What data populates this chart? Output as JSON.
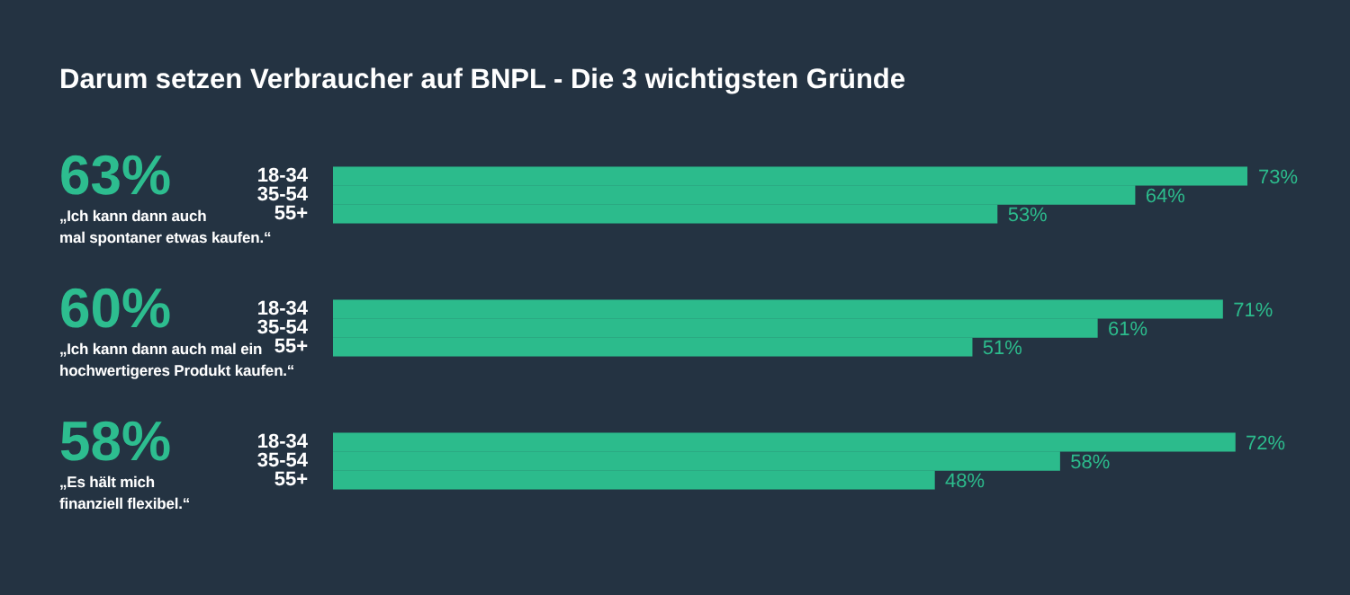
{
  "chart_data": [
    {
      "type": "bar",
      "orientation": "horizontal",
      "title": "Darum setzen Verbraucher auf BNPL - Die 3 wichtigsten Gründe",
      "categories": [
        "18-34",
        "35-54",
        "55+"
      ],
      "values": [
        73,
        64,
        53
      ],
      "value_labels": [
        "73%",
        "64%",
        "53%"
      ],
      "color": "#2cbb8c",
      "annotations": [
        "63%",
        "„Ich kann dann auch\nmal spontaner etwas kaufen.“"
      ]
    },
    {
      "type": "bar",
      "orientation": "horizontal",
      "categories": [
        "18-34",
        "35-54",
        "55+"
      ],
      "values": [
        71,
        61,
        51
      ],
      "value_labels": [
        "71%",
        "61%",
        "51%"
      ],
      "color": "#2cbb8c",
      "annotations": [
        "60%",
        "„Ich kann dann auch mal ein\nhochwertigeres Produkt kaufen.“"
      ]
    },
    {
      "type": "bar",
      "orientation": "horizontal",
      "categories": [
        "18-34",
        "35-54",
        "55+"
      ],
      "values": [
        72,
        58,
        48
      ],
      "value_labels": [
        "72%",
        "58%",
        "48%"
      ],
      "color": "#2cbb8c",
      "annotations": [
        "58%",
        "„Es hält mich\nfinanziell flexibel.“"
      ]
    }
  ]
}
